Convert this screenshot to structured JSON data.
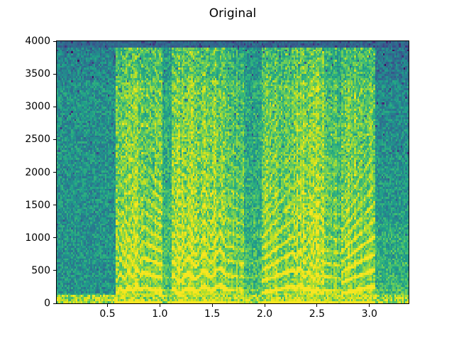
{
  "figure": {
    "title": "Original"
  },
  "chart_data": {
    "type": "heatmap",
    "subtype": "audio-spectrogram",
    "title": "Original",
    "xlabel": "",
    "ylabel": "",
    "xlim": [
      0.016,
      3.374
    ],
    "ylim": [
      0,
      4000
    ],
    "xticks": [
      {
        "value": 0.5,
        "label": "0.5"
      },
      {
        "value": 1.0,
        "label": "1.0"
      },
      {
        "value": 1.5,
        "label": "1.5"
      },
      {
        "value": 2.0,
        "label": "2.0"
      },
      {
        "value": 2.5,
        "label": "2.5"
      },
      {
        "value": 3.0,
        "label": "3.0"
      }
    ],
    "yticks": [
      {
        "value": 0,
        "label": "0"
      },
      {
        "value": 500,
        "label": "500"
      },
      {
        "value": 1000,
        "label": "1000"
      },
      {
        "value": 1500,
        "label": "1500"
      },
      {
        "value": 2000,
        "label": "2000"
      },
      {
        "value": 2500,
        "label": "2500"
      },
      {
        "value": 3000,
        "label": "3000"
      },
      {
        "value": 3500,
        "label": "3500"
      },
      {
        "value": 4000,
        "label": "4000"
      }
    ],
    "grid": false,
    "legend": false,
    "colormap": "viridis",
    "colormap_anchors": [
      "#440154",
      "#482878",
      "#3e4989",
      "#31688e",
      "#26828e",
      "#1f9e89",
      "#35b779",
      "#6ece58",
      "#b5de2b",
      "#dfe318",
      "#fde725"
    ],
    "background_color": "#ffffff",
    "segments": [
      {
        "t0": 0.016,
        "t1": 0.575,
        "level": 0.46,
        "harm": 0.0,
        "pitch0": 200,
        "pitch1": 200,
        "desc": "quiet background (teal)"
      },
      {
        "t0": 0.575,
        "t1": 0.84,
        "level": 0.66,
        "harm": 0.55,
        "pitch0": 195,
        "pitch1": 245,
        "wiggle": 1,
        "desc": "voiced speech, bright harmonics full height"
      },
      {
        "t0": 0.84,
        "t1": 1.02,
        "level": 0.64,
        "harm": 0.5,
        "pitch0": 235,
        "pitch1": 195,
        "desc": "voiced speech"
      },
      {
        "t0": 1.02,
        "t1": 1.12,
        "level": 0.52,
        "harm": 0.12,
        "pitch0": 200,
        "pitch1": 190,
        "desc": "short pause / stop gap"
      },
      {
        "t0": 1.12,
        "t1": 1.62,
        "level": 0.66,
        "harm": 0.55,
        "pitch0": 185,
        "pitch1": 250,
        "wiggle": 1,
        "desc": "voiced speech, chevron harmonic striations"
      },
      {
        "t0": 1.62,
        "t1": 1.8,
        "level": 0.6,
        "harm": 0.3,
        "pitch0": 220,
        "pitch1": 200,
        "desc": "weaker voicing"
      },
      {
        "t0": 1.8,
        "t1": 1.97,
        "level": 0.5,
        "harm": 0.12,
        "pitch0": 200,
        "pitch1": 210,
        "desc": "dark vertical gap"
      },
      {
        "t0": 1.97,
        "t1": 2.28,
        "level": 0.62,
        "harm": 0.45,
        "pitch0": 165,
        "pitch1": 260,
        "desc": "voiced speech, rising diagonal harmonics"
      },
      {
        "t0": 2.28,
        "t1": 2.56,
        "level": 0.68,
        "harm": 0.6,
        "pitch0": 260,
        "pitch1": 180,
        "wiggle": 1,
        "desc": "strong voiced segment, zigzag harmonics to 4 kHz"
      },
      {
        "t0": 2.56,
        "t1": 2.74,
        "level": 0.58,
        "harm": 0.3,
        "pitch0": 205,
        "pitch1": 190,
        "desc": "weaker voicing"
      },
      {
        "t0": 2.74,
        "t1": 3.05,
        "level": 0.63,
        "harm": 0.5,
        "pitch0": 160,
        "pitch1": 255,
        "desc": "voiced speech, rising harmonic fan at low freq"
      },
      {
        "t0": 3.05,
        "t1": 3.374,
        "level": 0.47,
        "harm": 0.06,
        "pitch0": 200,
        "pitch1": 200,
        "fade_top": 1,
        "desc": "quiet tail, darker upper band"
      }
    ],
    "bands": {
      "low_band_max_hz": 110,
      "low_band_value": 0.8,
      "low_shelf_hz": 170,
      "top_band_min_hz": 3920,
      "top_band_value": 0.3
    },
    "noise": {
      "amount": 0.13,
      "speckle_prob": 0.025
    },
    "render": {
      "seed": 1337,
      "cols": 220,
      "rows": 128
    }
  },
  "layout_note": "single matplotlib-style figure, no legend, no axis labels"
}
